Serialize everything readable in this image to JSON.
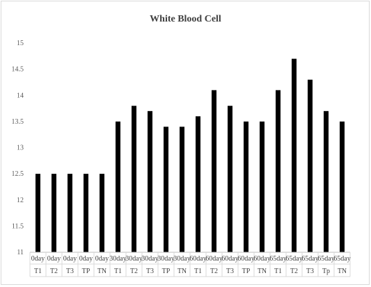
{
  "chart_data": {
    "type": "bar",
    "title": "White Blood Cell",
    "xlabel": "",
    "ylabel": "",
    "ylim": [
      11,
      15
    ],
    "yticks": [
      "11",
      "11.5",
      "12",
      "12.5",
      "13",
      "13.5",
      "14",
      "14.5",
      "15"
    ],
    "grid": false,
    "legend": "none",
    "bar_color": "#000000",
    "categories": [
      {
        "day": "0day",
        "group": "T1"
      },
      {
        "day": "0day",
        "group": "T2"
      },
      {
        "day": "0day",
        "group": "T3"
      },
      {
        "day": "0day",
        "group": "TP"
      },
      {
        "day": "0day",
        "group": "TN"
      },
      {
        "day": "30day",
        "group": "T1"
      },
      {
        "day": "30day",
        "group": "T2"
      },
      {
        "day": "30day",
        "group": "T3"
      },
      {
        "day": "30day",
        "group": "TP"
      },
      {
        "day": "30day",
        "group": "TN"
      },
      {
        "day": "60day",
        "group": "T1"
      },
      {
        "day": "60day",
        "group": "T2"
      },
      {
        "day": "60day",
        "group": "T3"
      },
      {
        "day": "60day",
        "group": "TP"
      },
      {
        "day": "60day",
        "group": "TN"
      },
      {
        "day": "65day",
        "group": "T1"
      },
      {
        "day": "65day",
        "group": "T2"
      },
      {
        "day": "65day",
        "group": "T3"
      },
      {
        "day": "65day",
        "group": "Tp"
      },
      {
        "day": "65day",
        "group": "TN"
      }
    ],
    "values": [
      12.5,
      12.5,
      12.5,
      12.5,
      12.5,
      13.5,
      13.8,
      13.7,
      13.4,
      13.4,
      13.6,
      14.1,
      13.8,
      13.5,
      13.5,
      14.1,
      14.7,
      14.3,
      13.7,
      13.5
    ]
  }
}
